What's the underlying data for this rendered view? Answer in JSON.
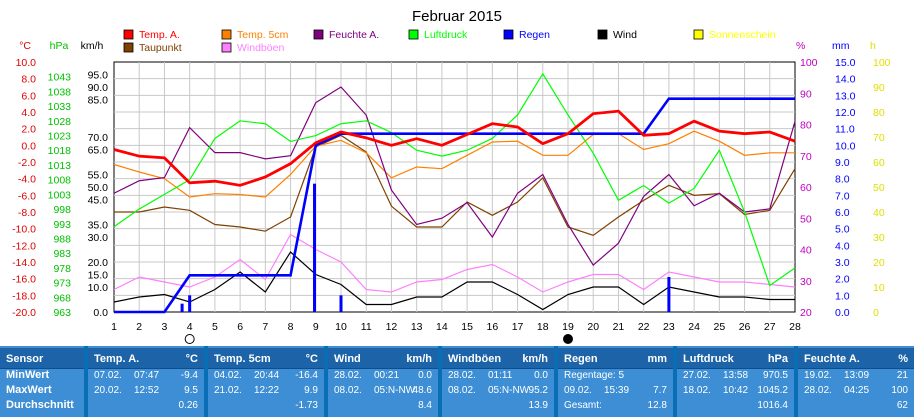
{
  "chart_data": {
    "type": "line",
    "title": "Februar 2015",
    "x": [
      1,
      2,
      3,
      4,
      5,
      6,
      7,
      8,
      9,
      10,
      11,
      12,
      13,
      14,
      15,
      16,
      17,
      18,
      19,
      20,
      21,
      22,
      23,
      24,
      25,
      26,
      27,
      28
    ],
    "xlim": [
      1,
      28
    ],
    "x_markers": {
      "circle_open": [
        4
      ],
      "circle_filled": [
        19
      ]
    },
    "axes": [
      {
        "id": "temp",
        "label": "°C",
        "color": "#e00000",
        "side": "left",
        "range": [
          -20,
          10
        ],
        "ticks": [
          "10.0",
          "8.0",
          "6.0",
          "4.0",
          "2.0",
          "0.0",
          "-2.0",
          "-4.0",
          "-6.0",
          "-8.0",
          "-10.0",
          "-12.0",
          "-14.0",
          "-16.0",
          "-18.0",
          "-20.0"
        ]
      },
      {
        "id": "hpa",
        "label": "hPa",
        "color": "#00c000",
        "side": "left",
        "range": [
          963,
          1048
        ],
        "ticks": [
          "1043",
          "1038",
          "1033",
          "1028",
          "1023",
          "1018",
          "1013",
          "1008",
          "1003",
          "998",
          "993",
          "988",
          "983",
          "978",
          "973",
          "968",
          "963"
        ]
      },
      {
        "id": "kmh",
        "label": "km/h",
        "color": "#000000",
        "side": "left",
        "range": [
          0,
          100
        ],
        "ticks": [
          "95.0",
          "90.0",
          "85.0",
          "70.0",
          "65.0",
          "55.0",
          "50.0",
          "45.0",
          "35.0",
          "30.0",
          "20.0",
          "15.0",
          "10.0",
          "0.0"
        ]
      },
      {
        "id": "pct",
        "label": "%",
        "color": "#c000c0",
        "side": "right",
        "range": [
          20,
          100
        ],
        "ticks": [
          "100",
          "90",
          "80",
          "70",
          "60",
          "50",
          "40",
          "30",
          "20"
        ]
      },
      {
        "id": "mm",
        "label": "mm",
        "color": "#0000ff",
        "side": "right",
        "range": [
          0,
          15
        ],
        "ticks": [
          "15.0",
          "14.0",
          "13.0",
          "12.0",
          "11.0",
          "10.0",
          "9.0",
          "8.0",
          "7.0",
          "6.0",
          "5.0",
          "4.0",
          "3.0",
          "2.0",
          "1.0",
          "0.0"
        ]
      },
      {
        "id": "h",
        "label": "h",
        "color": "#e0e000",
        "side": "right",
        "range": [
          0,
          100
        ],
        "ticks": [
          "100",
          "90",
          "80",
          "70",
          "60",
          "50",
          "40",
          "30",
          "20",
          "10",
          "0"
        ]
      }
    ],
    "legend": [
      {
        "name": "Temp. A.",
        "color": "#ff0000"
      },
      {
        "name": "Temp. 5cm",
        "color": "#ff8000"
      },
      {
        "name": "Feuchte A.",
        "color": "#800080"
      },
      {
        "name": "Luftdruck",
        "color": "#00ff00"
      },
      {
        "name": "Regen",
        "color": "#0000ff"
      },
      {
        "name": "Wind",
        "color": "#000000"
      },
      {
        "name": "Sonnenschein",
        "color": "#ffff00"
      },
      {
        "name": "Taupunkt",
        "color": "#804000"
      },
      {
        "name": "Windböen",
        "color": "#ff80ff"
      }
    ],
    "series": [
      {
        "name": "Temp. A.",
        "axis": "temp",
        "color": "#ff0000",
        "values": [
          -0.5,
          -1.3,
          -1.5,
          -4.5,
          -4.3,
          -4.8,
          -3.8,
          -2.2,
          0.3,
          1.6,
          0.9,
          0.0,
          0.8,
          0.0,
          1.3,
          2.6,
          2.2,
          0.2,
          1.4,
          3.8,
          4.1,
          1.2,
          1.4,
          2.9,
          1.7,
          1.4,
          1.6,
          0.5
        ]
      },
      {
        "name": "Temp. 5cm",
        "axis": "temp",
        "color": "#ff8000",
        "values": [
          -2.3,
          -3.2,
          -4.0,
          -6.2,
          -5.8,
          -5.9,
          -6.2,
          -3.5,
          -0.1,
          0.6,
          -0.9,
          -3.9,
          -2.6,
          -2.8,
          -1.2,
          0.4,
          0.5,
          -1.2,
          -1.2,
          1.3,
          1.4,
          -0.5,
          0.2,
          1.7,
          0.5,
          -1.2,
          -0.9,
          -0.9
        ]
      },
      {
        "name": "Taupunkt",
        "axis": "temp",
        "color": "#804000",
        "values": [
          -8.0,
          -8.0,
          -7.4,
          -7.8,
          -9.5,
          -9.8,
          -10.3,
          -8.6,
          -0.2,
          1.2,
          -0.8,
          -7.3,
          -9.8,
          -9.8,
          -6.8,
          -8.4,
          -6.8,
          -3.9,
          -9.8,
          -10.8,
          -8.6,
          -6.6,
          -4.8,
          -6.0,
          -5.8,
          -8.3,
          -7.8,
          -2.8
        ]
      },
      {
        "name": "Luftdruck",
        "axis": "hpa",
        "color": "#00ff00",
        "values": [
          992,
          998,
          1003,
          1008,
          1022,
          1028,
          1027,
          1021,
          1023,
          1027,
          1028,
          1024,
          1018,
          1016,
          1018,
          1022,
          1030,
          1044,
          1030,
          1017,
          1001,
          1006,
          1000,
          1005,
          1018,
          997,
          972,
          978
        ]
      },
      {
        "name": "Feuchte A.",
        "axis": "pct",
        "color": "#800080",
        "values": [
          58,
          62,
          63,
          79,
          71,
          71,
          69,
          70,
          87,
          92,
          83,
          59,
          48,
          50,
          55,
          44,
          58,
          64,
          48,
          35,
          42,
          57,
          64,
          54,
          58,
          52,
          53,
          81
        ]
      },
      {
        "name": "Wind",
        "axis": "kmh",
        "color": "#000000",
        "values": [
          4,
          6,
          7,
          4,
          9,
          16,
          8,
          24,
          15,
          11,
          3,
          3,
          6,
          6,
          12,
          12,
          7,
          1,
          7,
          10,
          10,
          3,
          10,
          8,
          6,
          6,
          5,
          5
        ]
      },
      {
        "name": "Windböen",
        "axis": "kmh",
        "color": "#ff80ff",
        "values": [
          9,
          14,
          12,
          10,
          14,
          21,
          13,
          31,
          25,
          20,
          9,
          8,
          12,
          13,
          17,
          19,
          14,
          8,
          12,
          15,
          15,
          9,
          16,
          14,
          12,
          12,
          11,
          10
        ]
      }
    ],
    "rain_total": {
      "name": "Regen",
      "axis": "mm",
      "color": "#0000ff",
      "values": [
        0,
        0,
        0,
        2.2,
        2.2,
        2.2,
        2.2,
        2.2,
        10.0,
        10.7,
        10.7,
        10.7,
        10.7,
        10.7,
        10.7,
        10.7,
        10.7,
        10.7,
        10.7,
        10.7,
        10.7,
        10.7,
        12.8,
        12.8,
        12.8,
        12.8,
        12.8,
        12.8
      ]
    },
    "rain_bars": {
      "axis": "mm",
      "color": "#0000ff",
      "bars": [
        {
          "x": 3.7,
          "v": 0.5
        },
        {
          "x": 4.0,
          "v": 1.0
        },
        {
          "x": 8.95,
          "v": 7.7
        },
        {
          "x": 10.0,
          "v": 1.0
        },
        {
          "x": 23.0,
          "v": 2.1
        }
      ]
    }
  },
  "table": {
    "columns": [
      {
        "title": "Sensor",
        "unit": "",
        "rows": [
          {
            "label": "MinWert"
          },
          {
            "label": "MaxWert"
          },
          {
            "label": "Durchschnitt"
          }
        ]
      },
      {
        "title": "Temp. A.",
        "unit": "°C",
        "rows": [
          {
            "d": "07.02.",
            "t": "07:47",
            "v": "-9.4"
          },
          {
            "d": "20.02.",
            "t": "12:52",
            "v": "9.5"
          },
          {
            "d": "",
            "t": "",
            "v": "0.26"
          }
        ]
      },
      {
        "title": "Temp. 5cm",
        "unit": "°C",
        "rows": [
          {
            "d": "04.02.",
            "t": "20:44",
            "v": "-16.4"
          },
          {
            "d": "21.02.",
            "t": "12:22",
            "v": "9.9"
          },
          {
            "d": "",
            "t": "",
            "v": "-1.73"
          }
        ]
      },
      {
        "title": "Wind",
        "unit": "km/h",
        "rows": [
          {
            "d": "28.02.",
            "t": "00:21",
            "v": "0.0"
          },
          {
            "d": "08.02.",
            "t": "05:N-NW",
            "v": "48.6"
          },
          {
            "d": "",
            "t": "",
            "v": "8.4"
          }
        ]
      },
      {
        "title": "Windböen",
        "unit": "km/h",
        "rows": [
          {
            "d": "28.02.",
            "t": "01:11",
            "v": "0.0"
          },
          {
            "d": "08.02.",
            "t": "05:N-NW",
            "v": "95.2"
          },
          {
            "d": "",
            "t": "",
            "v": "13.9"
          }
        ]
      },
      {
        "title": "Regen",
        "unit": "mm",
        "rows": [
          {
            "d": "Regentage: 5",
            "t": "",
            "v": ""
          },
          {
            "d": "09.02.",
            "t": "15:39",
            "v": "7.7"
          },
          {
            "d": "Gesamt:",
            "t": "",
            "v": "12.8"
          }
        ]
      },
      {
        "title": "Luftdruck",
        "unit": "hPa",
        "rows": [
          {
            "d": "27.02.",
            "t": "13:58",
            "v": "970.5"
          },
          {
            "d": "18.02.",
            "t": "10:42",
            "v": "1045.2"
          },
          {
            "d": "",
            "t": "",
            "v": "1016.4"
          }
        ]
      },
      {
        "title": "Feuchte A.",
        "unit": "%",
        "rows": [
          {
            "d": "19.02.",
            "t": "13:09",
            "v": "21"
          },
          {
            "d": "28.02.",
            "t": "04:25",
            "v": "100"
          },
          {
            "d": "",
            "t": "",
            "v": "62"
          }
        ]
      }
    ]
  }
}
